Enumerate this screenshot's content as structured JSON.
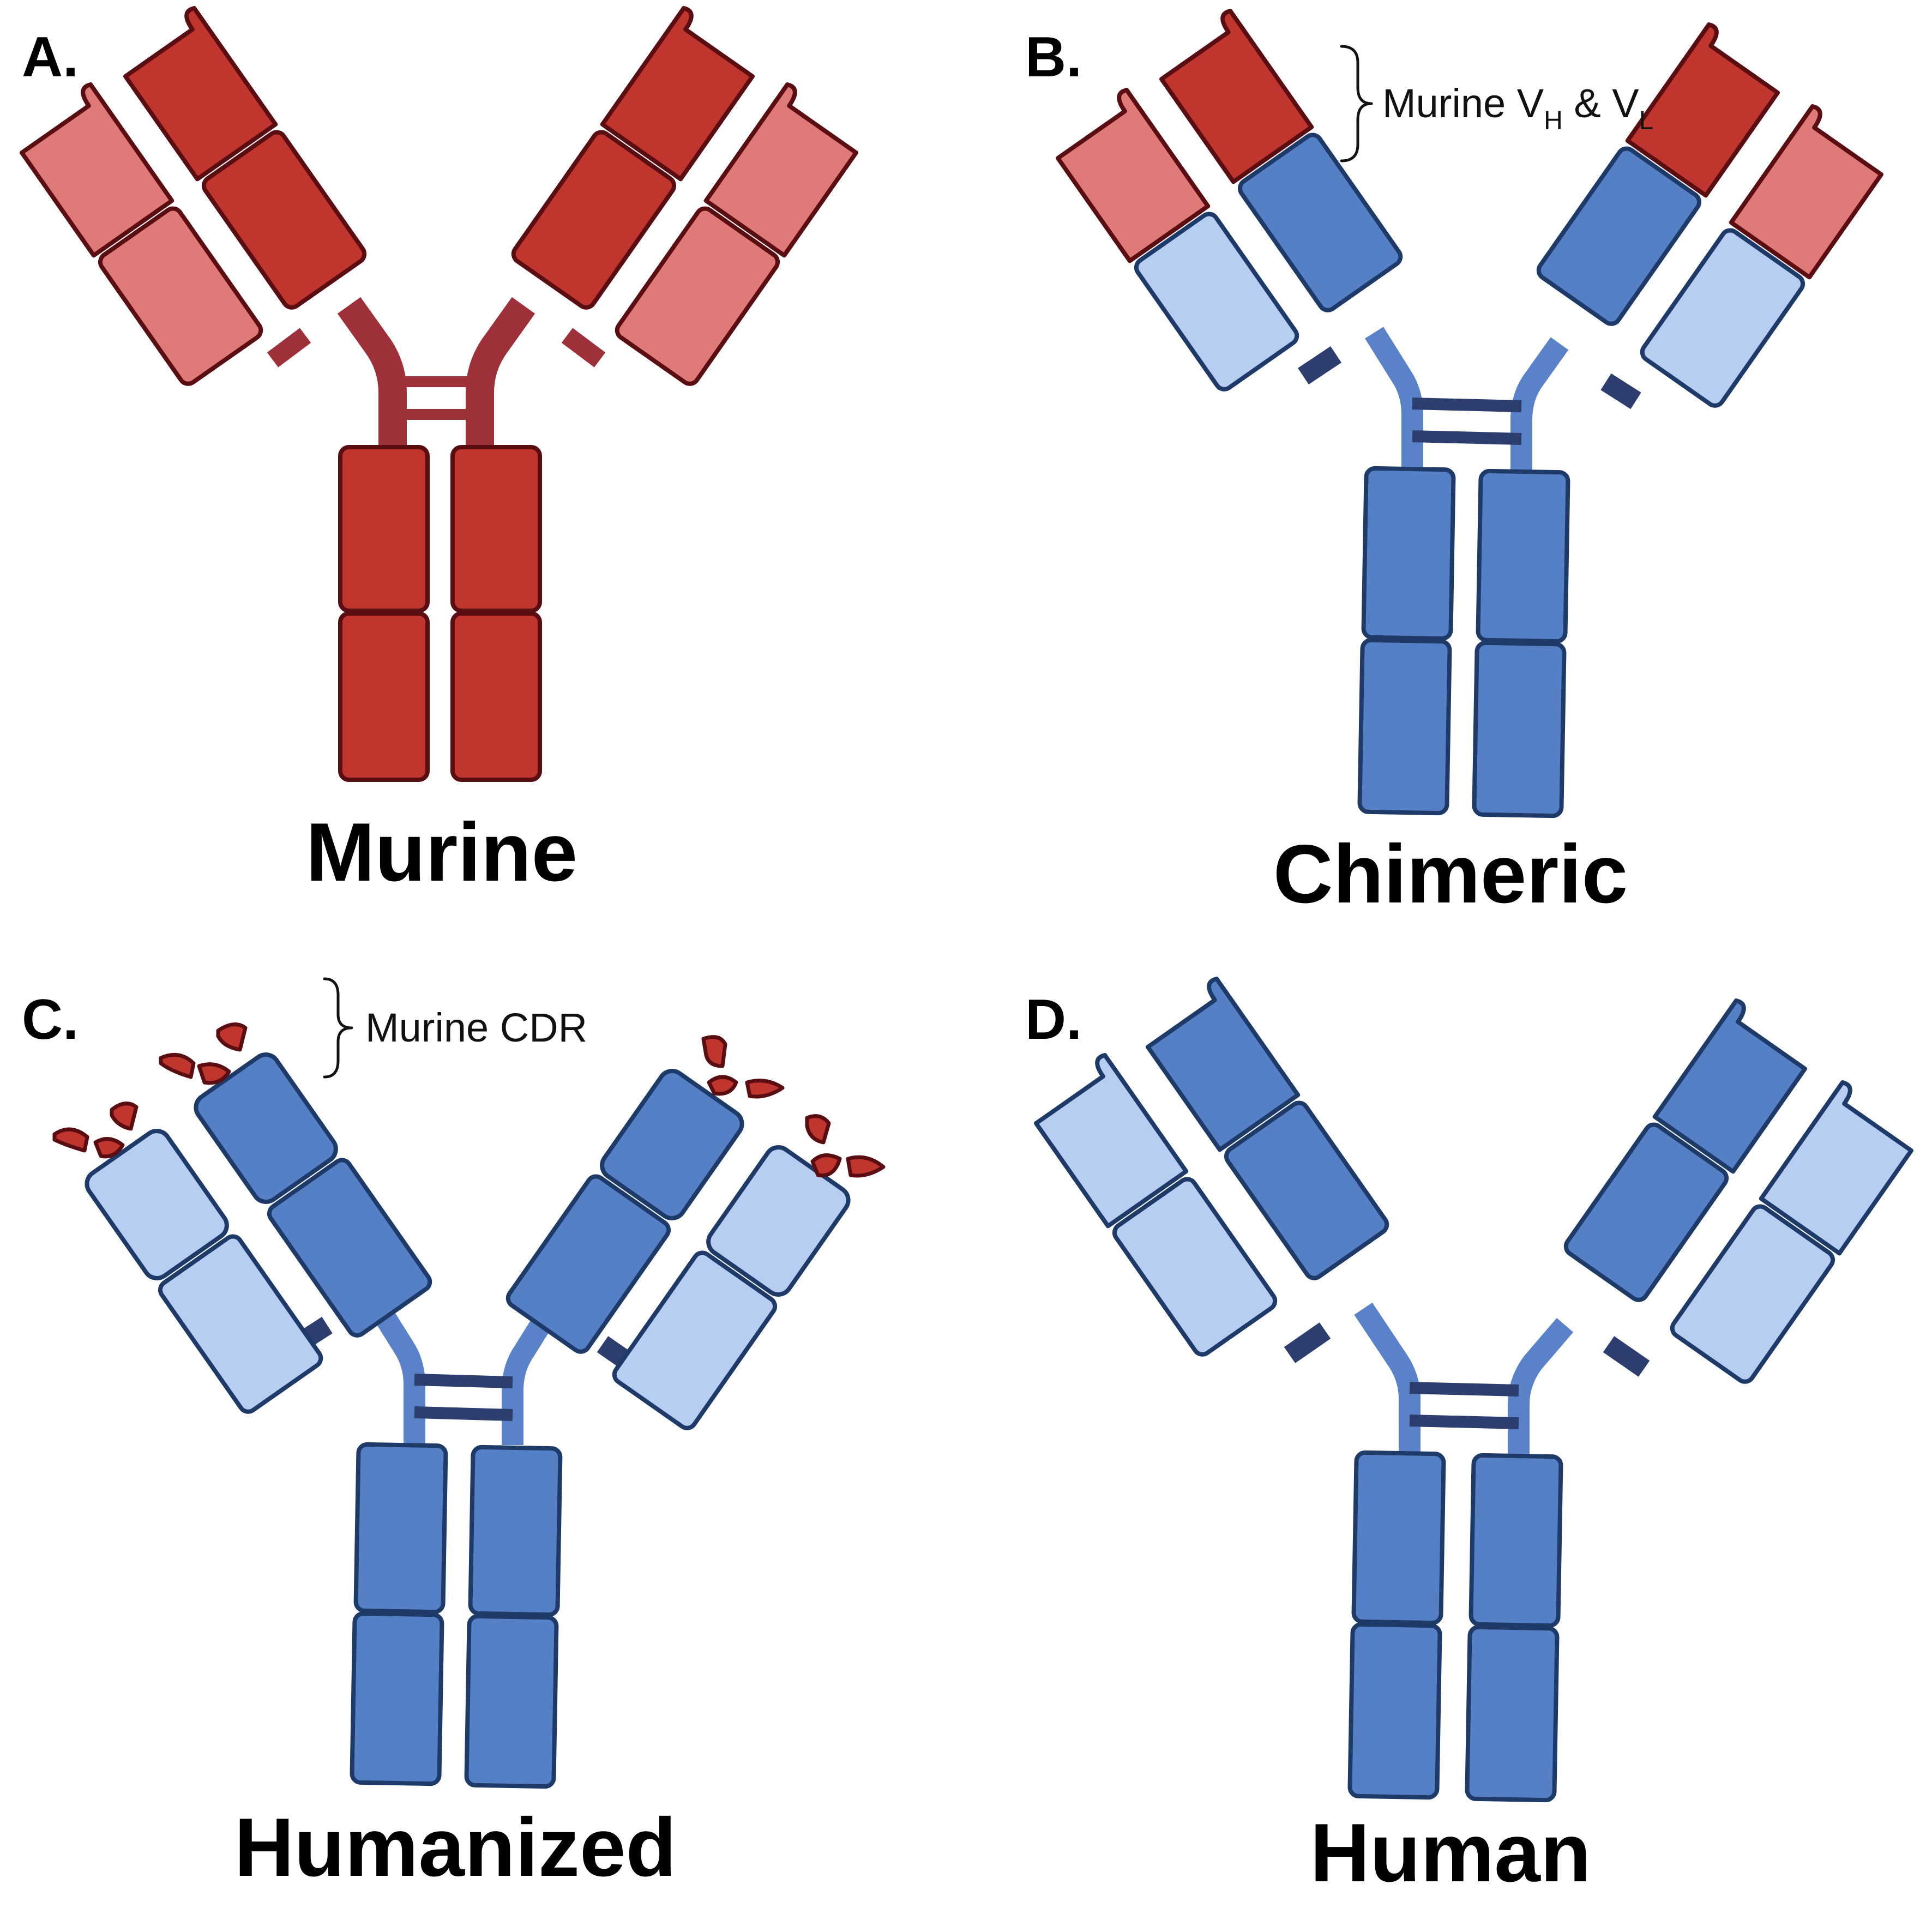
{
  "panels": [
    {
      "letter": "A.",
      "title": "Murine"
    },
    {
      "letter": "B.",
      "title": "Chimeric"
    },
    {
      "letter": "C.",
      "title": "Humanized"
    },
    {
      "letter": "D.",
      "title": "Human"
    }
  ],
  "annotations": {
    "chimeric_variable": {
      "text": "Murine V",
      "sub_h": "H",
      "amp": " & V",
      "sub_l": "L"
    },
    "humanized_cdr": {
      "text": "Murine CDR"
    }
  },
  "colors": {
    "murine_dark": "#C0362F",
    "murine_light": "#E07A79",
    "murine_outline": "#5A0E12",
    "murine_hinge": "#9E3039",
    "human_dark": "#5680C5",
    "human_light": "#B7CDF2",
    "human_outline": "#1E3A68",
    "human_hinge": "#5A82C8",
    "human_bridge": "#2C3D6E"
  }
}
